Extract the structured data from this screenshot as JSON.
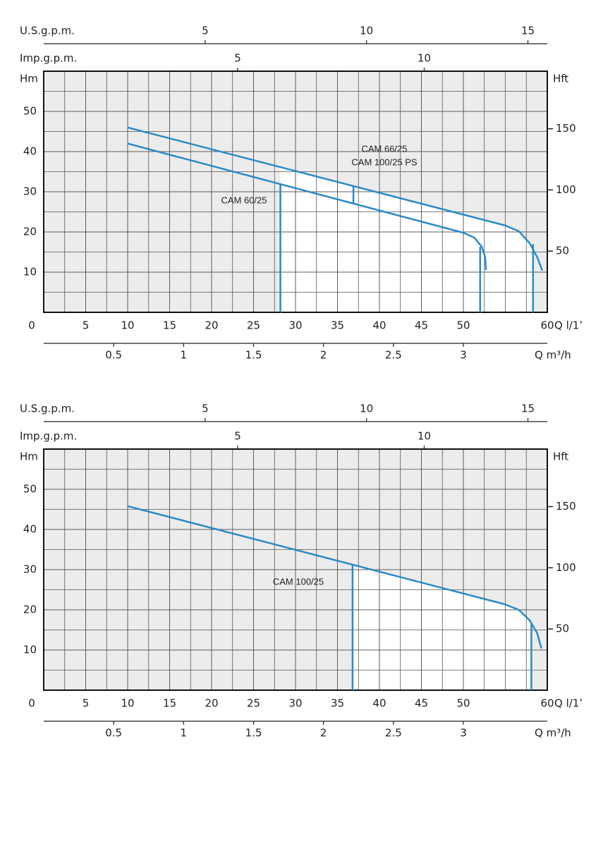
{
  "chart_data": [
    {
      "type": "line",
      "xlabel": "Q l/1’",
      "ylabel": "Hm",
      "y2label": "Hft",
      "xlim": [
        0,
        60
      ],
      "xticks": [
        0,
        5,
        10,
        15,
        20,
        25,
        30,
        35,
        40,
        45,
        50,
        60
      ],
      "ylim": [
        0,
        60
      ],
      "yticks": [
        10,
        20,
        30,
        40,
        50
      ],
      "y2lim": [
        0,
        197
      ],
      "y2ticks": [
        50,
        100,
        150
      ],
      "grid": true,
      "grid_step_x": 2.5,
      "grid_step_y": 5,
      "top_axes": [
        {
          "label": "U.S.g.p.m.",
          "lim": [
            0,
            15.6
          ],
          "ticks": [
            5,
            10,
            15
          ]
        },
        {
          "label": "Imp.g.p.m.",
          "lim": [
            -0.2,
            13.3
          ],
          "ticks": [
            5,
            10
          ]
        }
      ],
      "bottom_axis": {
        "label": "Q m³/h",
        "lim": [
          0,
          3.6
        ],
        "ticks": [
          0.5,
          1,
          1.5,
          2,
          2.5,
          3
        ]
      },
      "series": [
        {
          "color": "#2a8ac8",
          "x": [
            10,
            55,
            56.6,
            57.9,
            58.8,
            59.4
          ],
          "values": [
            46,
            21.6,
            20.2,
            17.2,
            13.7,
            10.4
          ]
        },
        {
          "color": "#2a8ac8",
          "x": [
            10,
            50,
            51.3,
            52.2,
            52.6,
            52.7
          ],
          "values": [
            42,
            19.8,
            18.6,
            16.3,
            13.7,
            10.5
          ]
        }
      ],
      "verticals": [
        {
          "x": 28.2,
          "y": 31.9
        },
        {
          "x": 36.9,
          "y": 31.6,
          "y0": 27.2
        },
        {
          "x": 52,
          "y": 16.3
        },
        {
          "x": 58.3,
          "y": 17
        }
      ],
      "annotations": [
        "CAM 66/25",
        "CAM 100/25 PS",
        "CAM 60/25"
      ]
    },
    {
      "type": "line",
      "xlabel": "Q l/1’",
      "ylabel": "Hm",
      "y2label": "Hft",
      "xlim": [
        0,
        60
      ],
      "xticks": [
        0,
        5,
        10,
        15,
        20,
        25,
        30,
        35,
        40,
        45,
        50,
        60
      ],
      "ylim": [
        0,
        60
      ],
      "yticks": [
        10,
        20,
        30,
        40,
        50
      ],
      "y2lim": [
        0,
        197
      ],
      "y2ticks": [
        50,
        100,
        150
      ],
      "grid": true,
      "grid_step_x": 2.5,
      "grid_step_y": 5,
      "top_axes": [
        {
          "label": "U.S.g.p.m.",
          "lim": [
            0,
            15.6
          ],
          "ticks": [
            5,
            10,
            15
          ]
        },
        {
          "label": "Imp.g.p.m.",
          "lim": [
            -0.2,
            13.3
          ],
          "ticks": [
            5,
            10
          ]
        }
      ],
      "bottom_axis": {
        "label": "Q m³/h",
        "lim": [
          0,
          3.6
        ],
        "ticks": [
          0.5,
          1,
          1.5,
          2,
          2.5,
          3
        ]
      },
      "series": [
        {
          "color": "#2a8ac8",
          "x": [
            10,
            54.9,
            56.6,
            57.9,
            58.8,
            59.3
          ],
          "values": [
            45.8,
            21.4,
            20,
            17.4,
            14.2,
            10.4
          ]
        }
      ],
      "verticals": [
        {
          "x": 36.8,
          "y": 31.4
        },
        {
          "x": 58.1,
          "y": 16.5
        }
      ],
      "annotations": [
        "CAM 100/25"
      ]
    }
  ]
}
